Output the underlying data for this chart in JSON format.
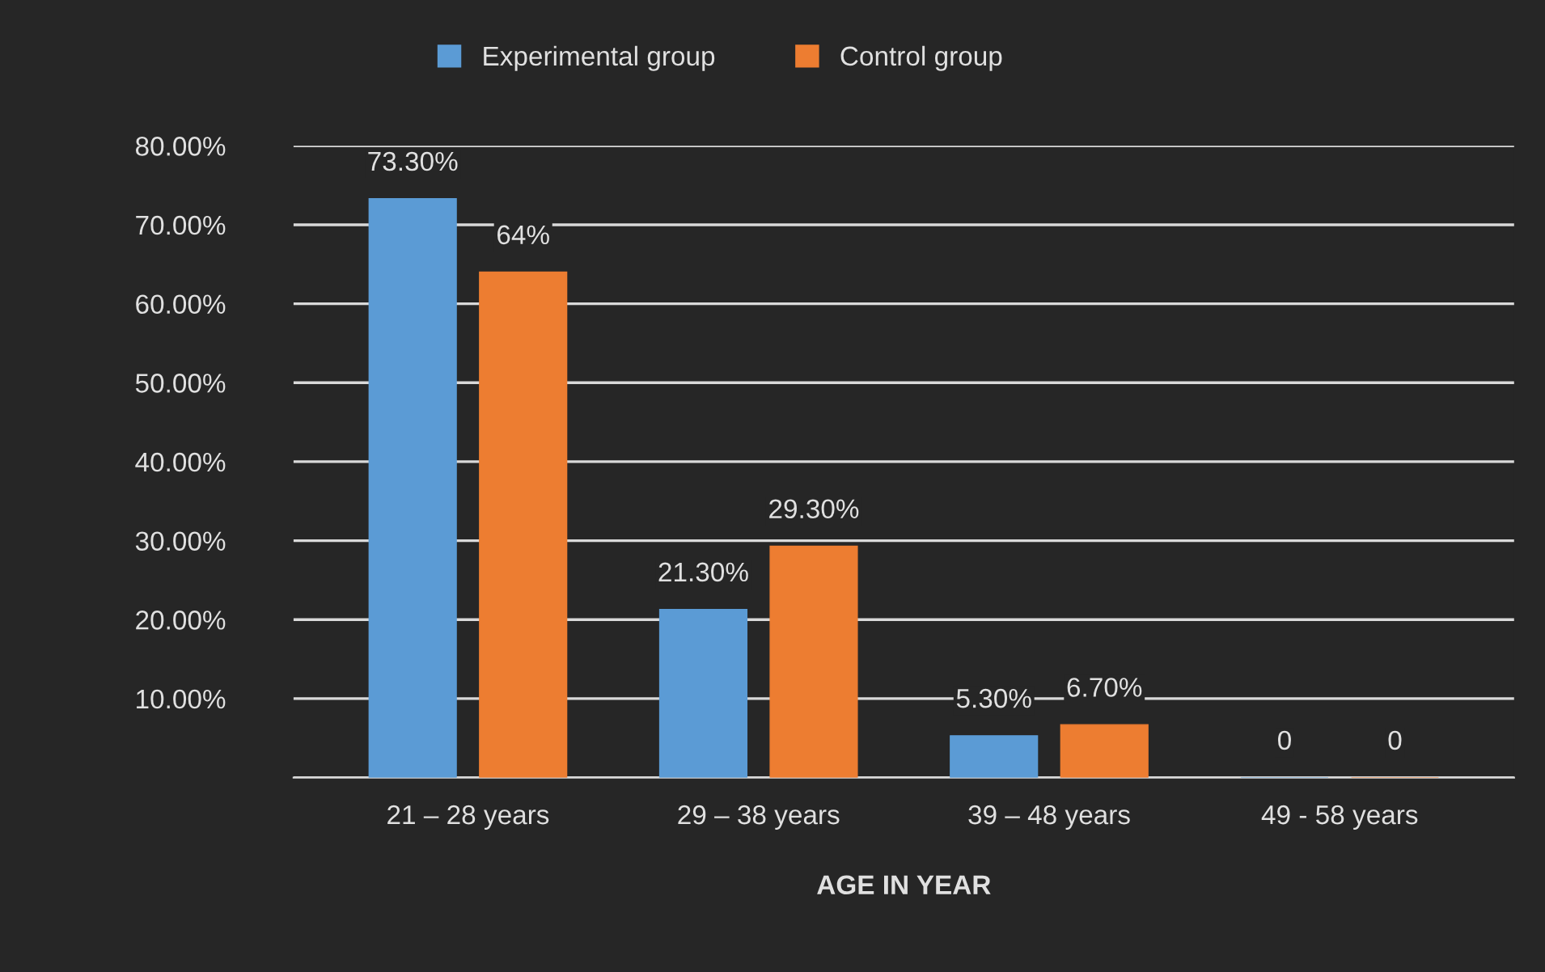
{
  "chart_data": {
    "type": "bar",
    "xlabel": "AGE IN YEAR",
    "categories": [
      "21 – 28 years",
      "29 – 38 years",
      "39 – 48 years",
      "49 - 58 years"
    ],
    "series": [
      {
        "name": "Experimental group",
        "color": "#5b9bd5",
        "values": [
          73.3,
          21.3,
          5.3,
          0
        ],
        "value_labels": [
          "73.30%",
          "21.30%",
          "5.30%",
          "0"
        ]
      },
      {
        "name": "Control group",
        "color": "#ed7d31",
        "values": [
          64,
          29.3,
          6.7,
          0
        ],
        "value_labels": [
          "64%",
          "29.30%",
          "6.70%",
          "0"
        ]
      }
    ],
    "ylim": [
      0,
      80
    ],
    "yticks": [
      {
        "value": 0,
        "label": null
      },
      {
        "value": 10,
        "label": "10.00%"
      },
      {
        "value": 20,
        "label": "20.00%"
      },
      {
        "value": 30,
        "label": "30.00%"
      },
      {
        "value": 40,
        "label": "40.00%"
      },
      {
        "value": 50,
        "label": "50.00%"
      },
      {
        "value": 60,
        "label": "60.00%"
      },
      {
        "value": 70,
        "label": "70.00%"
      },
      {
        "value": 80,
        "label": "80.00%"
      }
    ],
    "grid": "y",
    "legend": "top"
  }
}
